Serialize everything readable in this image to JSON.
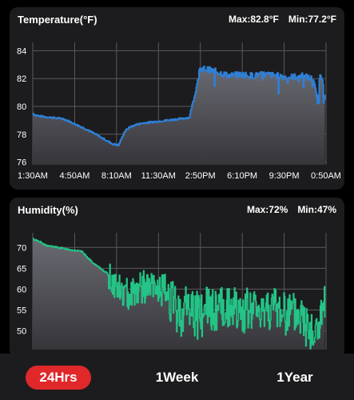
{
  "temperature": {
    "title": "Temperature(°F)",
    "max_label": "Max:82.8°F",
    "min_label": "Min:77.2°F"
  },
  "humidity": {
    "title": "Humidity(%)",
    "max_label": "Max:72%",
    "min_label": "Min:47%"
  },
  "tabs": [
    {
      "label": "24Hrs",
      "active": true
    },
    {
      "label": "1Week",
      "active": false
    },
    {
      "label": "1Year",
      "active": false
    }
  ],
  "colors": {
    "temperature_line": "#2f7fd6",
    "humidity_line": "#23c486",
    "active_tab": "#e0282a",
    "card_bg": "#1c1c1e"
  },
  "chart_data": [
    {
      "type": "line",
      "title": "Temperature(°F)",
      "xlabel": "",
      "ylabel": "",
      "ylim": [
        75.8,
        84.6
      ],
      "yticks": [
        76,
        78,
        80,
        82,
        84
      ],
      "xticks": [
        "1:30AM",
        "4:50AM",
        "8:10AM",
        "11:30AM",
        "2:50PM",
        "6:10PM",
        "9:30PM",
        "0:50AM"
      ],
      "grid": true,
      "series": [
        {
          "x": [
            0,
            0.1,
            0.5,
            1.5,
            2.5,
            3.5,
            4.5,
            5.5,
            6.5,
            7.0,
            7.5,
            7.9,
            8.2,
            8.5,
            9.0,
            10.0,
            11.0,
            12.0,
            12.8,
            13.0,
            13.3,
            13.6,
            14.0,
            15.0,
            16.0,
            17.0,
            18.0,
            19.0,
            20.0,
            21.0,
            22.0,
            22.8,
            23.0,
            23.3,
            23.5,
            23.7,
            23.9
          ],
          "values": [
            79.5,
            79.4,
            79.3,
            79.2,
            79.1,
            78.7,
            78.3,
            77.8,
            77.3,
            77.2,
            78.2,
            78.5,
            78.6,
            78.7,
            78.8,
            78.9,
            79.0,
            79.1,
            79.2,
            80.0,
            81.0,
            82.5,
            82.7,
            82.5,
            82.2,
            82.3,
            82.2,
            82.3,
            82.2,
            82.1,
            82.2,
            82.0,
            81.6,
            80.3,
            82.4,
            82.0,
            80.6
          ]
        }
      ]
    },
    {
      "type": "line",
      "title": "Humidity(%)",
      "xlabel": "",
      "ylabel": "",
      "ylim": [
        45.5,
        73.5
      ],
      "yticks": [
        50,
        55,
        60,
        65,
        70
      ],
      "grid": true,
      "series": [
        {
          "x": [
            0,
            0.5,
            1.0,
            2.0,
            3.0,
            4.0,
            4.5,
            5.0,
            6.0,
            6.5,
            7.0,
            7.5,
            8.0,
            9.0,
            10.0,
            11.0,
            11.5,
            12.0,
            12.5,
            13.0,
            14.0,
            15.0,
            16.0,
            17.0,
            18.0,
            19.0,
            20.0,
            21.0,
            22.0,
            22.5,
            23.0,
            23.5,
            23.9
          ],
          "values": [
            72,
            71.5,
            70.5,
            70,
            69.5,
            69,
            67.5,
            66,
            64,
            62,
            60,
            58.5,
            59.5,
            60.5,
            60,
            59.5,
            56,
            53.5,
            56,
            55.5,
            55,
            55,
            55.5,
            54.5,
            55,
            56,
            55,
            54,
            53.5,
            51,
            48.5,
            52,
            56
          ]
        }
      ]
    }
  ]
}
